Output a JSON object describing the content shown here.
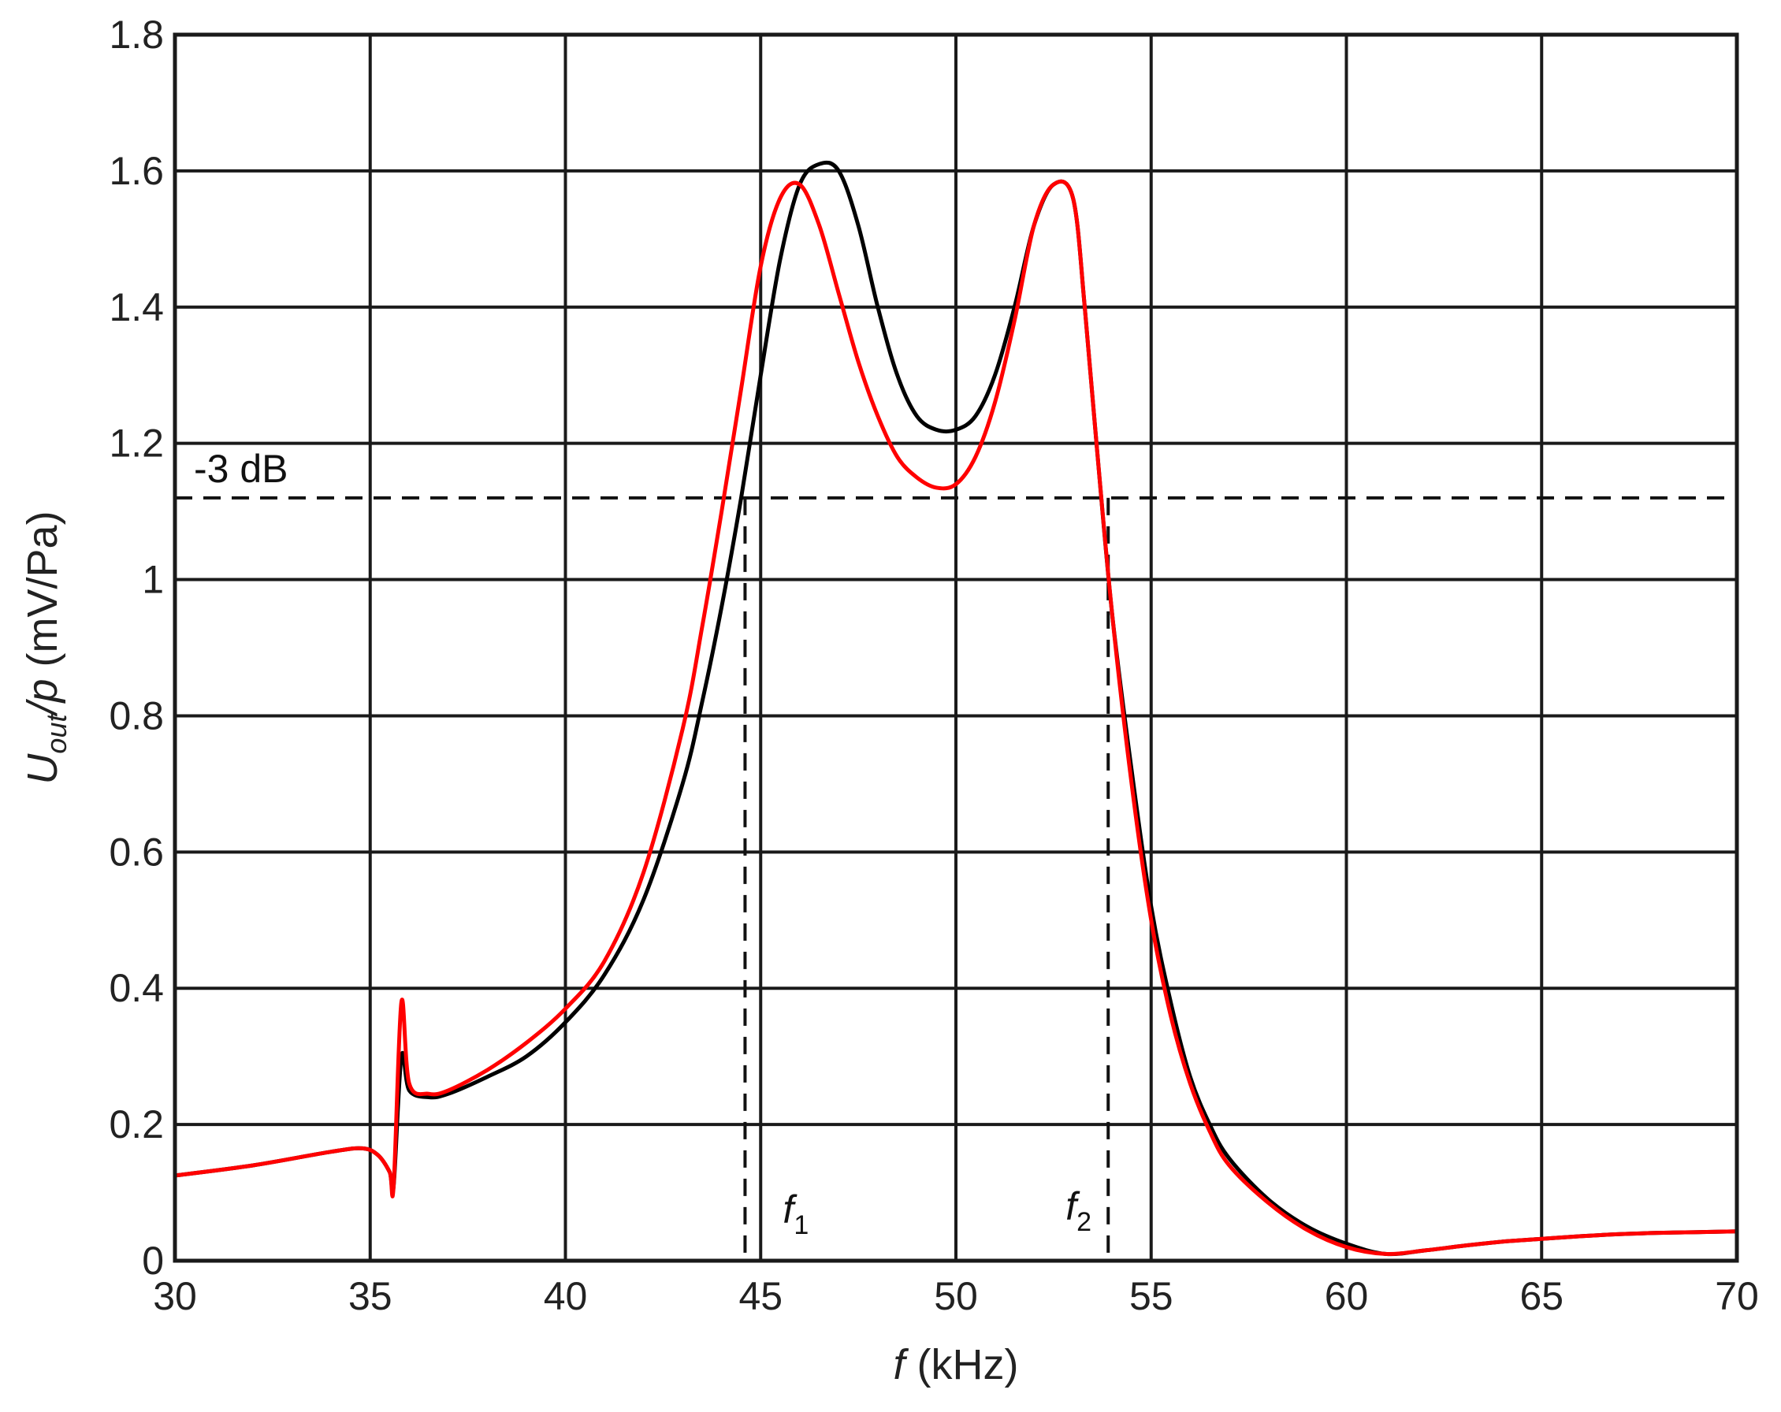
{
  "chart_data": {
    "type": "line",
    "xlabel_var": "f",
    "xlabel_unit": " (kHz)",
    "ylabel_var_main": "U",
    "ylabel_var_sub": "out",
    "ylabel_var_tail": "/p",
    "ylabel_unit": " (mV/Pa)",
    "xlim": [
      30,
      70
    ],
    "ylim": [
      0,
      1.8
    ],
    "xticks": [
      30,
      35,
      40,
      45,
      50,
      55,
      60,
      65,
      70
    ],
    "xtick_labels": [
      "30",
      "35",
      "40",
      "45",
      "50",
      "55",
      "60",
      "65",
      "70"
    ],
    "yticks": [
      0,
      0.2,
      0.4,
      0.6,
      0.8,
      1.0,
      1.2,
      1.4,
      1.6,
      1.8
    ],
    "ytick_labels": [
      "0",
      "0.2",
      "0.4",
      "0.6",
      "0.8",
      "1",
      "1.2",
      "1.4",
      "1.6",
      "1.8"
    ],
    "grid": true,
    "series": [
      {
        "color": "#000000",
        "x": [
          30,
          32,
          34,
          34.8,
          35.2,
          35.5,
          35.6,
          35.8,
          36.0,
          36.5,
          37,
          38,
          39,
          40,
          41,
          42,
          43,
          43.5,
          44,
          44.5,
          45,
          45.5,
          46,
          46.5,
          47,
          47.5,
          48,
          48.5,
          49,
          49.5,
          50,
          50.5,
          51,
          51.5,
          52,
          52.5,
          53,
          53.3,
          53.6,
          54,
          54.5,
          55,
          55.5,
          56,
          56.5,
          57,
          58,
          59,
          60,
          61,
          62,
          63,
          64,
          65,
          66,
          67,
          68,
          69,
          70
        ],
        "y": [
          0.125,
          0.14,
          0.16,
          0.165,
          0.155,
          0.13,
          0.11,
          0.3,
          0.25,
          0.24,
          0.245,
          0.27,
          0.3,
          0.35,
          0.42,
          0.53,
          0.7,
          0.82,
          0.96,
          1.12,
          1.3,
          1.47,
          1.58,
          1.61,
          1.6,
          1.52,
          1.4,
          1.3,
          1.24,
          1.22,
          1.22,
          1.24,
          1.3,
          1.4,
          1.52,
          1.58,
          1.56,
          1.4,
          1.2,
          0.95,
          0.72,
          0.52,
          0.38,
          0.27,
          0.2,
          0.15,
          0.09,
          0.05,
          0.025,
          0.01,
          0.015,
          0.022,
          0.028,
          0.032,
          0.036,
          0.039,
          0.041,
          0.042,
          0.043
        ]
      },
      {
        "color": "#ff0000",
        "x": [
          30,
          32,
          34,
          34.8,
          35.2,
          35.5,
          35.6,
          35.8,
          36.0,
          36.5,
          37,
          38,
          39,
          40,
          41,
          42,
          43,
          43.5,
          44,
          44.5,
          45,
          45.5,
          46,
          46.5,
          47,
          47.5,
          48,
          48.5,
          49,
          49.5,
          50,
          50.5,
          51,
          51.5,
          52,
          52.5,
          53,
          53.3,
          53.6,
          54,
          54.5,
          55,
          55.5,
          56,
          56.5,
          57,
          58,
          59,
          60,
          61,
          62,
          63,
          64,
          65,
          66,
          67,
          68,
          69,
          70
        ],
        "y": [
          0.125,
          0.14,
          0.16,
          0.165,
          0.155,
          0.13,
          0.11,
          0.38,
          0.26,
          0.245,
          0.25,
          0.28,
          0.32,
          0.37,
          0.44,
          0.57,
          0.78,
          0.93,
          1.1,
          1.28,
          1.46,
          1.56,
          1.58,
          1.52,
          1.42,
          1.32,
          1.24,
          1.18,
          1.15,
          1.135,
          1.14,
          1.18,
          1.26,
          1.38,
          1.52,
          1.58,
          1.56,
          1.4,
          1.2,
          0.95,
          0.7,
          0.5,
          0.36,
          0.26,
          0.19,
          0.14,
          0.085,
          0.045,
          0.02,
          0.01,
          0.015,
          0.022,
          0.028,
          0.032,
          0.036,
          0.039,
          0.041,
          0.042,
          0.043
        ]
      }
    ],
    "annotations": {
      "threshold": {
        "label": "-3 dB",
        "y": 1.12
      },
      "f1": {
        "var": "f",
        "sub": "1",
        "x": 44.6,
        "y_top": 1.12
      },
      "f2": {
        "var": "f",
        "sub": "2",
        "x": 53.9,
        "y_top": 1.12
      }
    }
  }
}
